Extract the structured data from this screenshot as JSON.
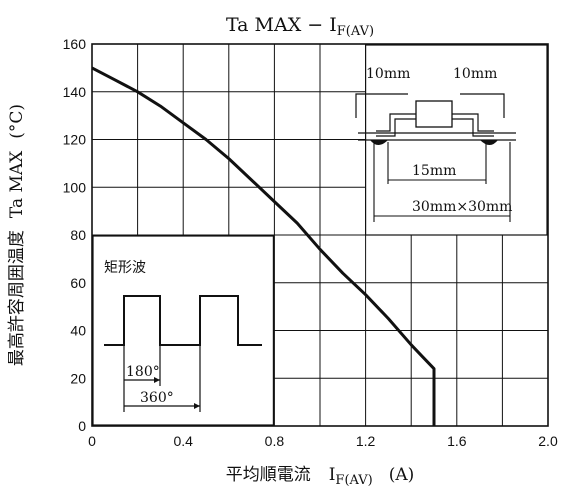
{
  "chart_data": {
    "type": "line",
    "title_main": "Ta MAX − I",
    "title_sub": "F",
    "title_tail": "(AV)",
    "xlabel_jp": "平均順電流",
    "xlabel_sym": "I",
    "xlabel_sub": "F",
    "xlabel_tail": "(AV)",
    "xlabel_unit": "(A)",
    "ylabel_jp": "最高許容周囲温度",
    "ylabel_sym": "Ta MAX",
    "ylabel_unit": "(°C)",
    "xlim": [
      0,
      2.0
    ],
    "ylim": [
      0,
      160
    ],
    "xticks": [
      0,
      0.4,
      0.8,
      1.2,
      1.6,
      2.0
    ],
    "xtick_labels": [
      "0",
      "0.4",
      "0.8",
      "1.2",
      "1.6",
      "2.0"
    ],
    "yticks": [
      0,
      20,
      40,
      60,
      80,
      100,
      120,
      140,
      160
    ],
    "ytick_labels": [
      "0",
      "20",
      "40",
      "60",
      "80",
      "100",
      "120",
      "140",
      "160"
    ],
    "series": [
      {
        "x": [
          0,
          0.1,
          0.2,
          0.3,
          0.4,
          0.5,
          0.6,
          0.7,
          0.8,
          0.9,
          1.0,
          1.1,
          1.2,
          1.3,
          1.4,
          1.45,
          1.5,
          1.5
        ],
        "y": [
          150,
          145,
          140,
          134,
          127,
          120,
          112,
          103,
          94,
          85,
          74,
          64,
          55,
          45,
          34,
          29,
          24,
          0
        ]
      }
    ],
    "annotations": {
      "waveform_label": "矩形波",
      "angle_180": "180°",
      "angle_360": "360°",
      "pad_left": "10mm",
      "pad_right": "10mm",
      "span_15": "15mm",
      "board": "30mm×30mm"
    }
  }
}
